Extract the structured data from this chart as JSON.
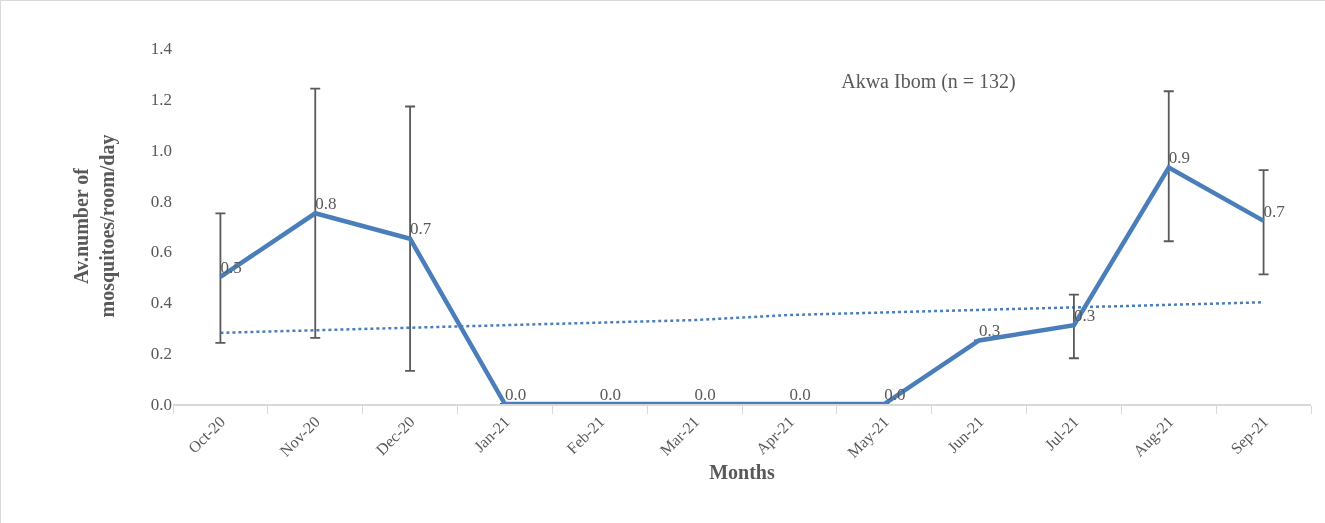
{
  "chart_data": {
    "type": "line",
    "title": "Akwa Ibom (n = 132)",
    "xlabel": "Months",
    "ylabel": "Av.number of mosquitoes/room/day",
    "categories": [
      "Oct-20",
      "Nov-20",
      "Dec-20",
      "Jan-21",
      "Feb-21",
      "Mar-21",
      "Apr-21",
      "May-21",
      "Jun-21",
      "Jul-21",
      "Aug-21",
      "Sep-21"
    ],
    "ylim": [
      0,
      1.4
    ],
    "yticks": [
      {
        "value": 0,
        "label": "0.0"
      },
      {
        "value": 0.2,
        "label": "0.2"
      },
      {
        "value": 0.4,
        "label": "0.4"
      },
      {
        "value": 0.6,
        "label": "0.6"
      },
      {
        "value": 0.8,
        "label": "0.8"
      },
      {
        "value": 1,
        "label": "1.0"
      },
      {
        "value": 1.2,
        "label": "1.2"
      },
      {
        "value": 1.4,
        "label": "1.4"
      }
    ],
    "grid": false,
    "marker": "none",
    "series": [
      {
        "color": "#4a7ebb",
        "line_style": "solid",
        "values": [
          0.5,
          0.75,
          0.65,
          0,
          0,
          0,
          0,
          0,
          0.25,
          0.31,
          0.93,
          0.72
        ],
        "errors": [
          [
            0.24,
            0.75
          ],
          [
            0.26,
            1.24
          ],
          [
            0.13,
            1.17
          ],
          null,
          null,
          null,
          null,
          null,
          null,
          [
            0.18,
            0.43
          ],
          [
            0.64,
            1.23
          ],
          [
            0.51,
            0.92
          ]
        ],
        "value_labels": [
          "0.5",
          "0.8",
          "0.7",
          "0.0",
          "0.0",
          "0.0",
          "0.0",
          "0.0",
          "0.3",
          "0.3",
          "0.9",
          "0.7"
        ]
      },
      {
        "color": "#4a7ebb",
        "line_style": "dotted",
        "values": [
          0.28,
          0.29,
          0.3,
          0.31,
          0.32,
          0.33,
          0.35,
          0.36,
          0.37,
          0.38,
          0.39,
          0.4
        ]
      }
    ]
  }
}
